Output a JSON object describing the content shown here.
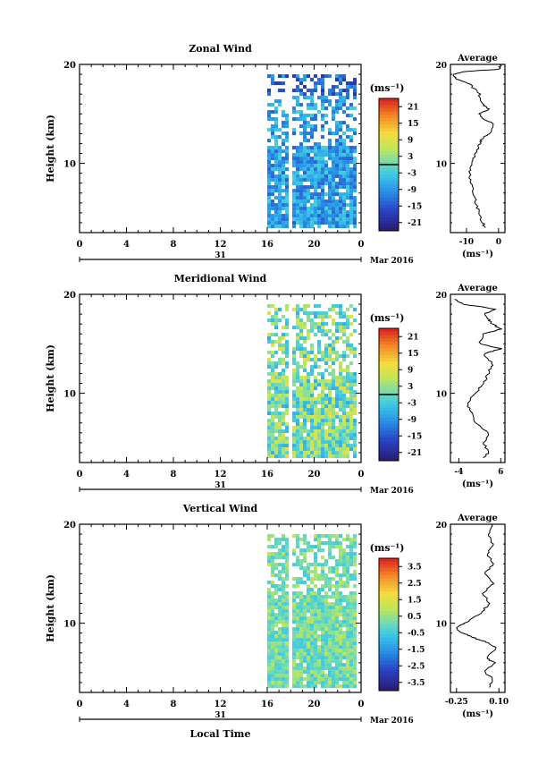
{
  "page": {
    "month_label": "Mar 2016",
    "day_label": "31",
    "xlabel": "Local Time",
    "ylabel": "Height (km)"
  },
  "chart_data": [
    {
      "type": "heatmap",
      "title": "Zonal Wind",
      "xlabel": "",
      "ylabel": "Height (km)",
      "xlim": [
        0,
        24
      ],
      "ylim": [
        3,
        20
      ],
      "xticks": [
        "0",
        "4",
        "8",
        "12",
        "16",
        "20",
        "0"
      ],
      "yticks": [
        "10",
        "20"
      ],
      "date_label": "Mar 2016",
      "day_label": "31",
      "colorbar": {
        "unit": "(ms⁻¹)",
        "ticks": [
          "21",
          "15",
          "9",
          "3",
          "-3",
          "-9",
          "-15",
          "-21"
        ],
        "range": [
          -24,
          24
        ],
        "zero_line": true
      },
      "data_extent": {
        "x": [
          16,
          23.5
        ],
        "y": [
          3.5,
          19
        ]
      },
      "average_profile": {
        "title": "Average",
        "xlabel": "(ms⁻¹)",
        "xticks": [
          "-10",
          "0"
        ],
        "xlim": [
          -15,
          2
        ],
        "ylim": [
          3,
          20
        ],
        "yticks": [
          "10",
          "20"
        ],
        "points": [
          [
            -4,
            3.5
          ],
          [
            -5,
            4
          ],
          [
            -6,
            5
          ],
          [
            -7,
            6
          ],
          [
            -8,
            7
          ],
          [
            -8.5,
            8
          ],
          [
            -9,
            9
          ],
          [
            -8.5,
            10
          ],
          [
            -7,
            11
          ],
          [
            -6,
            12
          ],
          [
            -5,
            12.5
          ],
          [
            -3,
            13
          ],
          [
            -1.5,
            14
          ],
          [
            -5,
            14.5
          ],
          [
            -6,
            15
          ],
          [
            -3,
            15.5
          ],
          [
            -5,
            16
          ],
          [
            -6,
            17
          ],
          [
            -9,
            18
          ],
          [
            -13,
            18.5
          ],
          [
            -14,
            19
          ],
          [
            -10,
            19.3
          ],
          [
            0,
            19.5
          ],
          [
            1,
            20
          ]
        ]
      }
    },
    {
      "type": "heatmap",
      "title": "Meridional Wind",
      "xlabel": "",
      "ylabel": "Height (km)",
      "xlim": [
        0,
        24
      ],
      "ylim": [
        3,
        20
      ],
      "xticks": [
        "0",
        "4",
        "8",
        "12",
        "16",
        "20",
        "0"
      ],
      "yticks": [
        "10",
        "20"
      ],
      "date_label": "Mar 2016",
      "day_label": "31",
      "colorbar": {
        "unit": "(ms⁻¹)",
        "ticks": [
          "21",
          "15",
          "9",
          "3",
          "-3",
          "-9",
          "-15",
          "-21"
        ],
        "range": [
          -24,
          24
        ],
        "zero_line": true
      },
      "data_extent": {
        "x": [
          16,
          23.5
        ],
        "y": [
          3.5,
          19
        ]
      },
      "average_profile": {
        "title": "Average",
        "xlabel": "(ms⁻¹)",
        "xticks": [
          "-4",
          "6"
        ],
        "xlim": [
          -6,
          7
        ],
        "ylim": [
          3,
          20
        ],
        "yticks": [
          "10",
          "20"
        ],
        "points": [
          [
            2,
            3.5
          ],
          [
            3,
            4
          ],
          [
            2,
            5
          ],
          [
            3,
            6
          ],
          [
            0,
            7
          ],
          [
            -1,
            8
          ],
          [
            -2,
            9
          ],
          [
            0,
            10
          ],
          [
            2,
            11
          ],
          [
            3,
            12
          ],
          [
            4,
            13
          ],
          [
            2,
            14
          ],
          [
            6,
            14.5
          ],
          [
            1,
            15
          ],
          [
            2,
            16
          ],
          [
            6,
            16.5
          ],
          [
            4,
            17
          ],
          [
            3,
            17.5
          ],
          [
            2,
            18
          ],
          [
            5,
            18.5
          ],
          [
            -3,
            19
          ],
          [
            -5,
            19.5
          ]
        ]
      }
    },
    {
      "type": "heatmap",
      "title": "Vertical Wind",
      "xlabel": "Local Time",
      "ylabel": "Height (km)",
      "xlim": [
        0,
        24
      ],
      "ylim": [
        3,
        20
      ],
      "xticks": [
        "0",
        "4",
        "8",
        "12",
        "16",
        "20",
        "0"
      ],
      "yticks": [
        "10",
        "20"
      ],
      "date_label": "Mar 2016",
      "day_label": "31",
      "colorbar": {
        "unit": "(ms⁻¹)",
        "ticks": [
          "3.5",
          "2.5",
          "1.5",
          "0.5",
          "-0.5",
          "-1.5",
          "-2.5",
          "-3.5"
        ],
        "range": [
          -4,
          4
        ],
        "zero_line": false
      },
      "data_extent": {
        "x": [
          16,
          23.5
        ],
        "y": [
          3.5,
          19
        ]
      },
      "average_profile": {
        "title": "Average",
        "xlabel": "(ms⁻¹)",
        "xticks": [
          "-0.25",
          "0.10"
        ],
        "xlim": [
          -0.3,
          0.15
        ],
        "ylim": [
          3,
          20
        ],
        "yticks": [
          "10",
          "20"
        ],
        "points": [
          [
            0.02,
            3.5
          ],
          [
            0.05,
            4.5
          ],
          [
            -0.02,
            5
          ],
          [
            0.06,
            6
          ],
          [
            0.0,
            6.5
          ],
          [
            0.08,
            7.5
          ],
          [
            0.02,
            8
          ],
          [
            -0.1,
            8.5
          ],
          [
            -0.2,
            9
          ],
          [
            -0.25,
            9.5
          ],
          [
            -0.18,
            10
          ],
          [
            -0.05,
            11
          ],
          [
            0.02,
            12
          ],
          [
            -0.03,
            13
          ],
          [
            0.05,
            14
          ],
          [
            -0.02,
            15
          ],
          [
            0.06,
            16
          ],
          [
            0.0,
            17
          ],
          [
            0.05,
            18
          ],
          [
            0.02,
            19
          ],
          [
            0.04,
            20
          ]
        ]
      }
    }
  ]
}
